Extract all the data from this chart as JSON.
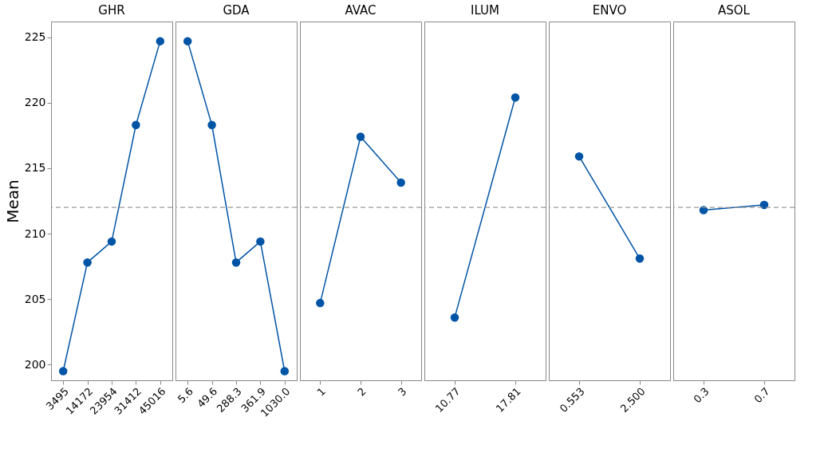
{
  "chart_data": [
    {
      "type": "line",
      "title": "GHR",
      "ylabel": "Mean",
      "categories": [
        "3495",
        "14172",
        "23954",
        "31412",
        "45016"
      ],
      "series": [
        {
          "color": "#0054a6",
          "values": [
            199.5,
            207.8,
            209.4,
            218.3,
            224.7
          ]
        }
      ],
      "ylim": [
        198.8,
        226.2
      ],
      "yticks": [
        200,
        205,
        210,
        215,
        220,
        225
      ],
      "ref_lines": [
        {
          "axis": "y",
          "value": 212,
          "line_style": "dashed",
          "color": "#999999"
        }
      ],
      "marker": "circle",
      "line_style": "solid",
      "grid": false
    },
    {
      "type": "line",
      "title": "GDA",
      "categories": [
        "5.6",
        "49.6",
        "288.3",
        "361.9",
        "1030.0"
      ],
      "series": [
        {
          "color": "#0054a6",
          "values": [
            224.7,
            218.3,
            207.8,
            209.4,
            199.5
          ]
        }
      ],
      "ylim": [
        198.8,
        226.2
      ],
      "tick_labels": "x",
      "ref_lines": [
        {
          "axis": "y",
          "value": 212,
          "line_style": "dashed",
          "color": "#999999"
        }
      ],
      "marker": "circle",
      "line_style": "solid",
      "grid": false
    },
    {
      "type": "line",
      "title": "AVAC",
      "categories": [
        "1",
        "2",
        "3"
      ],
      "series": [
        {
          "color": "#0054a6",
          "values": [
            204.7,
            217.4,
            213.9
          ]
        }
      ],
      "ylim": [
        198.8,
        226.2
      ],
      "tick_labels": "x",
      "ref_lines": [
        {
          "axis": "y",
          "value": 212,
          "line_style": "dashed",
          "color": "#999999"
        }
      ],
      "marker": "circle",
      "line_style": "solid",
      "grid": false
    },
    {
      "type": "line",
      "title": "ILUM",
      "categories": [
        "10.77",
        "17.81"
      ],
      "series": [
        {
          "color": "#0054a6",
          "values": [
            203.6,
            220.4
          ]
        }
      ],
      "ylim": [
        198.8,
        226.2
      ],
      "tick_labels": "x",
      "ref_lines": [
        {
          "axis": "y",
          "value": 212,
          "line_style": "dashed",
          "color": "#999999"
        }
      ],
      "marker": "circle",
      "line_style": "solid",
      "grid": false
    },
    {
      "type": "line",
      "title": "ENVO",
      "categories": [
        "0.553",
        "2.500"
      ],
      "series": [
        {
          "color": "#0054a6",
          "values": [
            215.9,
            208.1
          ]
        }
      ],
      "ylim": [
        198.8,
        226.2
      ],
      "tick_labels": "x",
      "ref_lines": [
        {
          "axis": "y",
          "value": 212,
          "line_style": "dashed",
          "color": "#999999"
        }
      ],
      "marker": "circle",
      "line_style": "solid",
      "grid": false
    },
    {
      "type": "line",
      "title": "ASOL",
      "categories": [
        "0.3",
        "0.7"
      ],
      "series": [
        {
          "color": "#0054a6",
          "values": [
            211.8,
            212.2
          ]
        }
      ],
      "ylim": [
        198.8,
        226.2
      ],
      "tick_labels": "x",
      "ref_lines": [
        {
          "axis": "y",
          "value": 212,
          "line_style": "dashed",
          "color": "#999999"
        }
      ],
      "marker": "circle",
      "line_style": "solid",
      "grid": false
    }
  ]
}
